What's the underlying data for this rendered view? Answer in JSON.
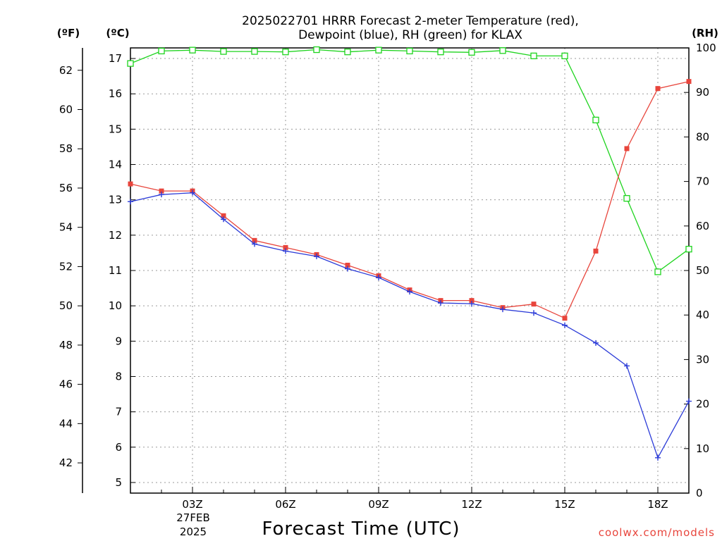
{
  "title_lines": [
    "2025022701 HRRR Forecast 2-meter Temperature (red),",
    "Dewpoint (blue), RH (green) for KLAX"
  ],
  "axis_units": {
    "left_outer": "(ºF)",
    "left_inner": "(ºC)",
    "right": "(RH)"
  },
  "x_date_lines": [
    "27FEB",
    "2025"
  ],
  "footer_credit": "coolwx.com/models",
  "colors": {
    "temperature": "#e8453c",
    "dewpoint": "#2b3bd8",
    "rh": "#1ed41e",
    "grid": "#9a9a9a"
  },
  "chart_data": {
    "type": "line",
    "title": "2025022701 HRRR Forecast 2-meter Temperature (red), Dewpoint (blue), RH (green) for KLAX",
    "xlabel": "Forecast Time (UTC)",
    "x": [
      "01Z",
      "02Z",
      "03Z",
      "04Z",
      "05Z",
      "06Z",
      "07Z",
      "08Z",
      "09Z",
      "10Z",
      "11Z",
      "12Z",
      "13Z",
      "14Z",
      "15Z",
      "16Z",
      "17Z",
      "18Z",
      "19Z"
    ],
    "x_ticks": [
      "03Z",
      "06Z",
      "09Z",
      "12Z",
      "15Z",
      "18Z"
    ],
    "series": [
      {
        "name": "Temperature",
        "axis": "celsius",
        "marker": "filled-square",
        "values": [
          13.45,
          13.25,
          13.25,
          12.55,
          11.85,
          11.65,
          11.45,
          11.15,
          10.85,
          10.45,
          10.15,
          10.15,
          9.95,
          10.05,
          9.65,
          11.55,
          14.45,
          16.15,
          16.35
        ]
      },
      {
        "name": "Dewpoint",
        "axis": "celsius",
        "marker": "plus",
        "values": [
          12.95,
          13.15,
          13.2,
          12.45,
          11.75,
          11.55,
          11.4,
          11.05,
          10.8,
          10.4,
          10.08,
          10.06,
          9.9,
          9.8,
          9.45,
          8.95,
          8.3,
          5.7,
          7.3
        ]
      },
      {
        "name": "RH",
        "axis": "rh",
        "marker": "open-square",
        "values": [
          96.5,
          99.3,
          99.5,
          99.2,
          99.2,
          99.1,
          99.6,
          99.1,
          99.5,
          99.3,
          99.1,
          99.0,
          99.4,
          98.2,
          98.2,
          83.8,
          66.2,
          49.7,
          54.8
        ]
      }
    ],
    "axes": {
      "celsius": {
        "ylim": [
          4.7,
          17.3
        ],
        "ticks": [
          5,
          6,
          7,
          8,
          9,
          10,
          11,
          12,
          13,
          14,
          15,
          16,
          17
        ]
      },
      "fahrenheit": {
        "ticks": [
          42,
          44,
          46,
          48,
          50,
          52,
          54,
          56,
          58,
          60,
          62
        ]
      },
      "rh": {
        "ylim": [
          0,
          100
        ],
        "ticks": [
          0,
          10,
          20,
          30,
          40,
          50,
          60,
          70,
          80,
          90,
          100
        ]
      }
    },
    "grid": true
  }
}
